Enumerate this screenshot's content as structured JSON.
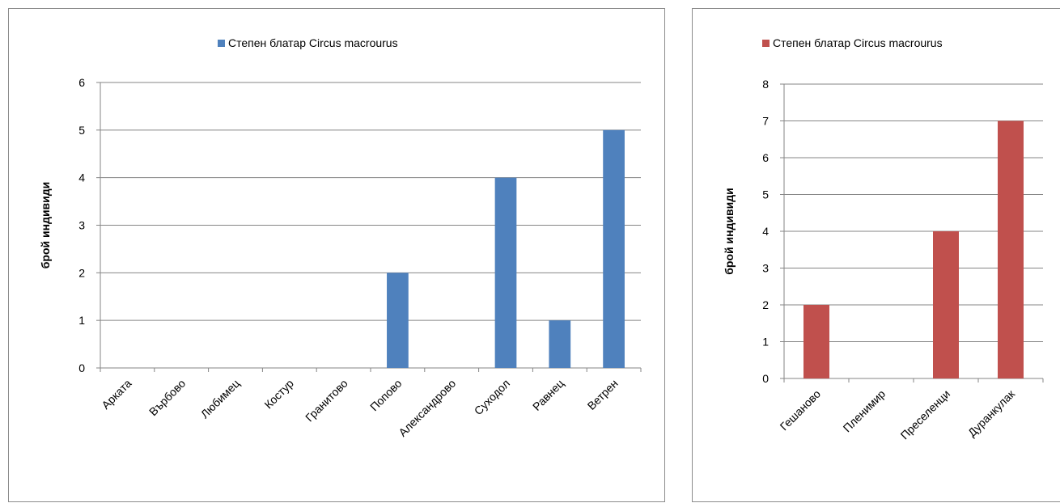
{
  "chart_data": [
    {
      "type": "bar",
      "categories": [
        "Арката",
        "Върбово",
        "Любимец",
        "Костур",
        "Гранитово",
        "Попово",
        "Александрово",
        "Суходол",
        "Равнец",
        "Ветрен"
      ],
      "series": [
        {
          "name": "Степен блатар Circus macrourus",
          "values": [
            0,
            0,
            0,
            0,
            0,
            2,
            0,
            4,
            1,
            5
          ],
          "color": "#4f81bd"
        }
      ],
      "ylabel": "брой индивиди",
      "xlabel": "",
      "ylim": [
        0,
        6
      ],
      "yticks": [
        0,
        1,
        2,
        3,
        4,
        5,
        6
      ],
      "grid": true,
      "legend": "top-center"
    },
    {
      "type": "bar",
      "categories": [
        "Гешаново",
        "Пленимир",
        "Преселенци",
        "Дуранкулак"
      ],
      "series": [
        {
          "name": "Степен блатар Circus macrourus",
          "values": [
            2,
            0,
            4,
            7
          ],
          "color": "#c0504d"
        }
      ],
      "ylabel": "брой индивиди",
      "xlabel": "",
      "ylim": [
        0,
        8
      ],
      "yticks": [
        0,
        1,
        2,
        3,
        4,
        5,
        6,
        7,
        8
      ],
      "grid": true,
      "legend": "top-center"
    }
  ]
}
